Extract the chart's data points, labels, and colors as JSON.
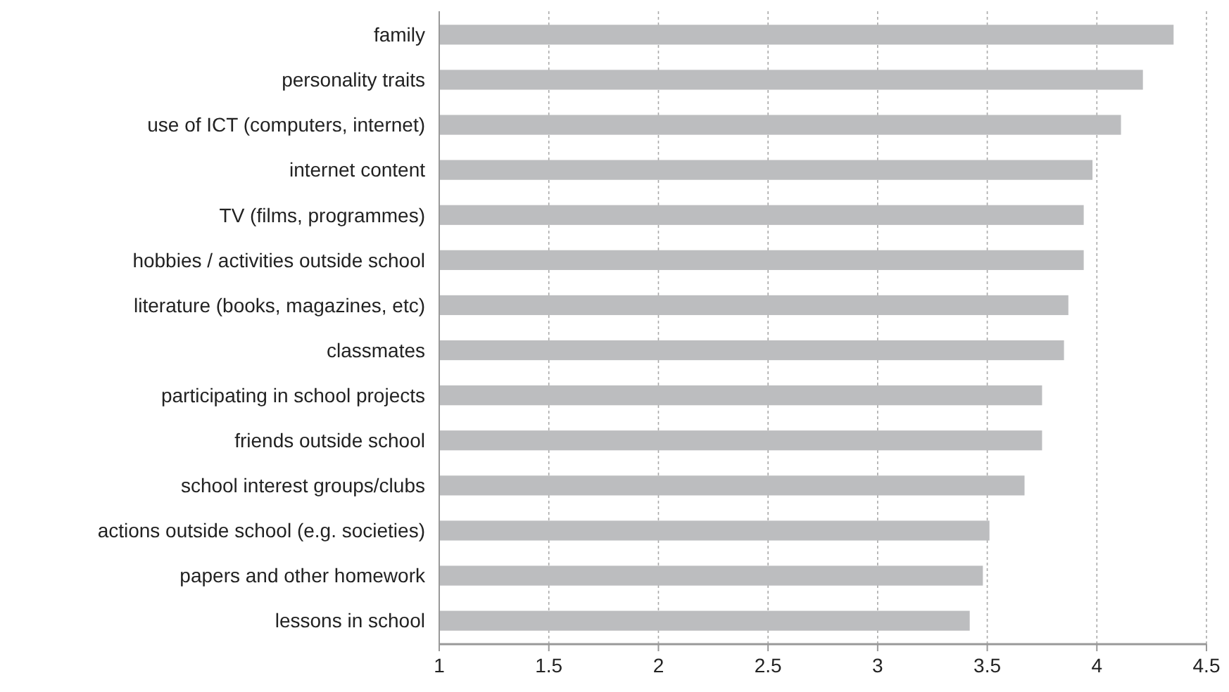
{
  "chart_data": {
    "type": "bar",
    "orientation": "horizontal",
    "categories": [
      "family",
      "personality traits",
      "use of ICT (computers, internet)",
      "internet content",
      "TV (films, programmes)",
      "hobbies / activities outside school",
      "literature (books, magazines, etc)",
      "classmates",
      "participating in school projects",
      "friends outside school",
      "school interest groups/clubs",
      "actions outside school (e.g. societies)",
      "papers and other homework",
      "lessons in school"
    ],
    "values": [
      4.35,
      4.21,
      4.11,
      3.98,
      3.94,
      3.94,
      3.87,
      3.85,
      3.75,
      3.75,
      3.67,
      3.51,
      3.48,
      3.42
    ],
    "color": "#bcbdbf",
    "xlim": [
      1,
      4.5
    ],
    "xticks": [
      1,
      1.5,
      2,
      2.5,
      3,
      3.5,
      4,
      4.5
    ],
    "grid": "x"
  }
}
